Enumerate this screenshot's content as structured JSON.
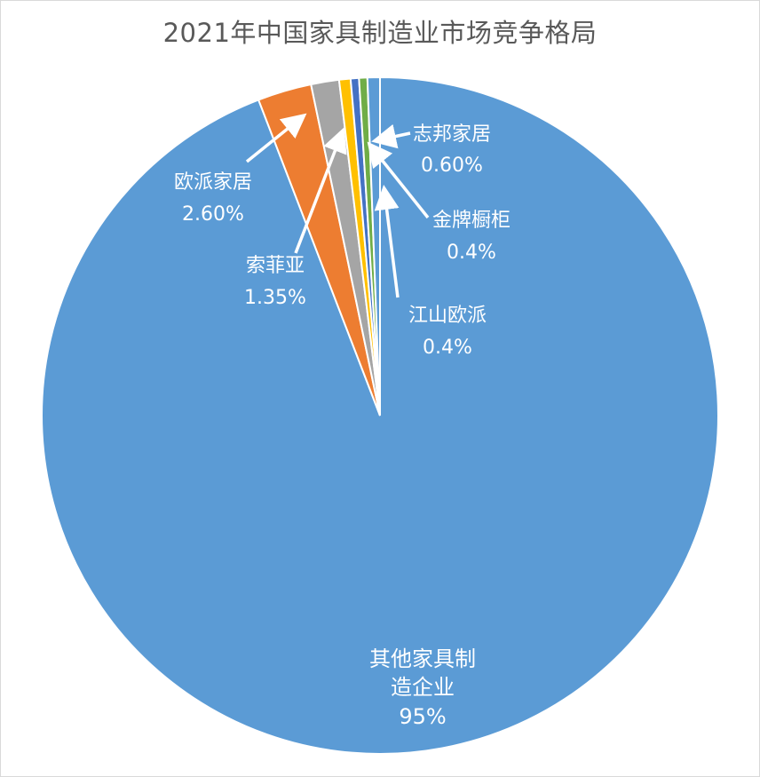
{
  "chart_data": {
    "type": "pie",
    "title": "2021年中国家具制造业市场竞争格局",
    "slices": [
      {
        "label": "其他家具制造企业",
        "value": 95,
        "value_label": "95%",
        "color": "#5b9bd5"
      },
      {
        "label": "欧派家居",
        "value": 2.6,
        "value_label": "2.60%",
        "color": "#ed7d31"
      },
      {
        "label": "索菲亚",
        "value": 1.35,
        "value_label": "1.35%",
        "color": "#a5a5a5"
      },
      {
        "label": "",
        "value": 0.55,
        "value_label": "",
        "color": "#ffc000"
      },
      {
        "label": "江山欧派",
        "value": 0.4,
        "value_label": "0.4%",
        "color": "#4472c4"
      },
      {
        "label": "金牌橱柜",
        "value": 0.4,
        "value_label": "0.4%",
        "color": "#70ad47"
      },
      {
        "label": "志邦家居",
        "value": 0.6,
        "value_label": "0.60%",
        "color": "#5b9bd5"
      }
    ],
    "legend": "none",
    "labels": [
      {
        "lines": [
          "其他家具制",
          "造企业"
        ],
        "value": "95%"
      },
      {
        "lines": [
          "欧派家居"
        ],
        "value": "2.60%"
      },
      {
        "lines": [
          "索菲亚"
        ],
        "value": "1.35%"
      },
      {
        "lines": [
          "志邦家居"
        ],
        "value": "0.60%"
      },
      {
        "lines": [
          "金牌橱柜"
        ],
        "value": "0.4%"
      },
      {
        "lines": [
          "江山欧派"
        ],
        "value": "0.4%"
      }
    ]
  }
}
